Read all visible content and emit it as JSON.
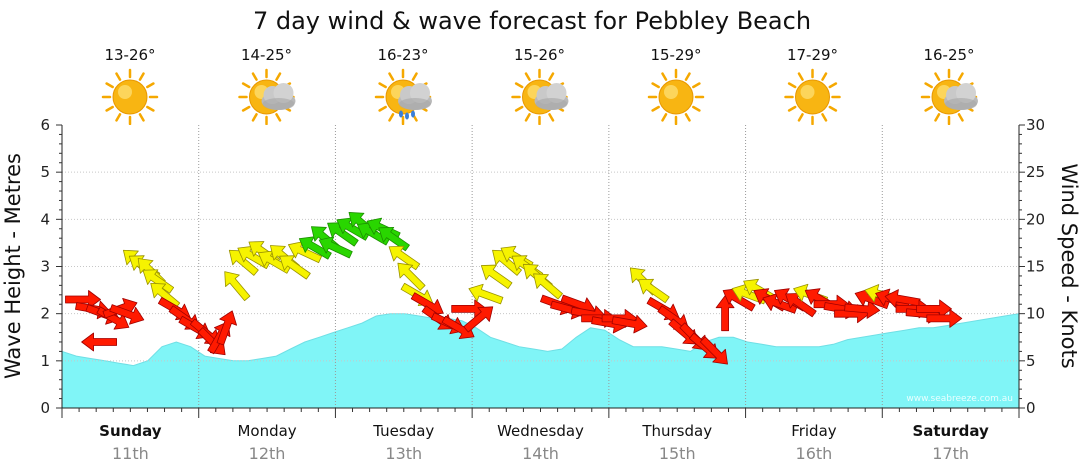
{
  "chart_data": {
    "type": "area",
    "title": "7 day wind & wave forecast for Pebbley Beach",
    "ylabel_left": "Wave Height - Metres",
    "ylabel_right": "Wind Speed - Knots",
    "ylim_left": [
      0,
      6
    ],
    "ylim_right": [
      0,
      30
    ],
    "yticks_left": [
      "0",
      "1",
      "2",
      "3",
      "4",
      "5",
      "6"
    ],
    "yticks_right": [
      "0",
      "5",
      "10",
      "15",
      "20",
      "25",
      "30"
    ],
    "credit": "www.seabreeze.com.au",
    "days": [
      {
        "name": "Sunday",
        "date": "11th",
        "temp": "13-26°",
        "weather": "sunny",
        "bold": true
      },
      {
        "name": "Monday",
        "date": "12th",
        "temp": "14-25°",
        "weather": "partly-cloudy",
        "bold": false
      },
      {
        "name": "Tuesday",
        "date": "13th",
        "temp": "16-23°",
        "weather": "showers",
        "bold": false
      },
      {
        "name": "Wednesday",
        "date": "14th",
        "temp": "15-26°",
        "weather": "partly-cloudy",
        "bold": false
      },
      {
        "name": "Thursday",
        "date": "15th",
        "temp": "15-29°",
        "weather": "sunny",
        "bold": false
      },
      {
        "name": "Friday",
        "date": "16th",
        "temp": "17-29°",
        "weather": "sunny",
        "bold": false
      },
      {
        "name": "Saturday",
        "date": "17th",
        "temp": "16-25°",
        "weather": "partly-cloudy",
        "bold": true
      }
    ],
    "wave_height_m": [
      1.2,
      1.1,
      1.05,
      1.0,
      0.95,
      0.9,
      1.0,
      1.3,
      1.4,
      1.3,
      1.1,
      1.05,
      1.0,
      1.0,
      1.05,
      1.1,
      1.25,
      1.4,
      1.5,
      1.6,
      1.7,
      1.8,
      1.95,
      2.0,
      2.0,
      1.95,
      1.9,
      1.9,
      1.85,
      1.7,
      1.5,
      1.4,
      1.3,
      1.25,
      1.2,
      1.25,
      1.5,
      1.7,
      1.65,
      1.45,
      1.3,
      1.3,
      1.3,
      1.25,
      1.2,
      1.4,
      1.5,
      1.5,
      1.4,
      1.35,
      1.3,
      1.3,
      1.3,
      1.3,
      1.35,
      1.45,
      1.5,
      1.55,
      1.6,
      1.65,
      1.7,
      1.7,
      1.75,
      1.8,
      1.85,
      1.9,
      1.95,
      2.0
    ],
    "wind_arrows": [
      {
        "x": 0.3,
        "kt": 11.5,
        "dir": 0
      },
      {
        "x": 0.45,
        "kt": 10.5,
        "dir": 10
      },
      {
        "x": 0.6,
        "kt": 10.0,
        "dir": 20
      },
      {
        "x": 0.75,
        "kt": 9.5,
        "dir": 30
      },
      {
        "x": 0.85,
        "kt": 10.5,
        "dir": -20
      },
      {
        "x": 0.95,
        "kt": 10.0,
        "dir": 20
      },
      {
        "x": 0.55,
        "kt": 7.0,
        "dir": 180
      },
      {
        "x": 1.1,
        "kt": 15.5,
        "dir": 220
      },
      {
        "x": 1.2,
        "kt": 15.0,
        "dir": 215
      },
      {
        "x": 1.3,
        "kt": 14.5,
        "dir": 225
      },
      {
        "x": 1.4,
        "kt": 13.5,
        "dir": 215
      },
      {
        "x": 1.5,
        "kt": 12.0,
        "dir": 220
      },
      {
        "x": 1.65,
        "kt": 10.5,
        "dir": 30
      },
      {
        "x": 1.8,
        "kt": 9.5,
        "dir": 35
      },
      {
        "x": 1.95,
        "kt": 8.5,
        "dir": 30
      },
      {
        "x": 2.1,
        "kt": 8.0,
        "dir": 40
      },
      {
        "x": 2.2,
        "kt": 7.0,
        "dir": 45
      },
      {
        "x": 2.3,
        "kt": 7.5,
        "dir": -60
      },
      {
        "x": 2.4,
        "kt": 8.5,
        "dir": -70
      },
      {
        "x": 2.55,
        "kt": 13.0,
        "dir": 230
      },
      {
        "x": 2.65,
        "kt": 15.5,
        "dir": 220
      },
      {
        "x": 2.8,
        "kt": 16.0,
        "dir": 210
      },
      {
        "x": 2.95,
        "kt": 16.5,
        "dir": 215
      },
      {
        "x": 3.1,
        "kt": 15.5,
        "dir": 210
      },
      {
        "x": 3.25,
        "kt": 16.0,
        "dir": 220
      },
      {
        "x": 3.4,
        "kt": 15.0,
        "dir": 215
      },
      {
        "x": 3.55,
        "kt": 16.5,
        "dir": 205
      },
      {
        "x": 3.7,
        "kt": 17.0,
        "dir": 210
      },
      {
        "x": 3.85,
        "kt": 18.0,
        "dir": 220
      },
      {
        "x": 4.0,
        "kt": 17.0,
        "dir": 205
      },
      {
        "x": 4.1,
        "kt": 18.5,
        "dir": 215
      },
      {
        "x": 4.25,
        "kt": 19.0,
        "dir": 210
      },
      {
        "x": 4.4,
        "kt": 19.5,
        "dir": 220
      },
      {
        "x": 4.55,
        "kt": 18.5,
        "dir": 210
      },
      {
        "x": 4.7,
        "kt": 19.0,
        "dir": 205
      },
      {
        "x": 4.85,
        "kt": 18.0,
        "dir": 215
      },
      {
        "x": 5.0,
        "kt": 16.0,
        "dir": 215
      },
      {
        "x": 5.1,
        "kt": 14.0,
        "dir": 225
      },
      {
        "x": 5.2,
        "kt": 12.0,
        "dir": 30
      },
      {
        "x": 5.35,
        "kt": 11.0,
        "dir": 30
      },
      {
        "x": 5.5,
        "kt": 9.5,
        "dir": 35
      },
      {
        "x": 5.65,
        "kt": 9.0,
        "dir": 25
      },
      {
        "x": 5.8,
        "kt": 8.5,
        "dir": 30
      },
      {
        "x": 5.95,
        "kt": 10.5,
        "dir": 0
      },
      {
        "x": 6.1,
        "kt": 9.5,
        "dir": -40
      },
      {
        "x": 6.2,
        "kt": 12.0,
        "dir": 200
      },
      {
        "x": 6.35,
        "kt": 14.0,
        "dir": 215
      },
      {
        "x": 6.5,
        "kt": 15.5,
        "dir": 220
      },
      {
        "x": 6.65,
        "kt": 16.0,
        "dir": 210
      },
      {
        "x": 6.8,
        "kt": 15.0,
        "dir": 215
      },
      {
        "x": 6.95,
        "kt": 14.0,
        "dir": 220
      },
      {
        "x": 7.1,
        "kt": 13.0,
        "dir": 220
      },
      {
        "x": 7.25,
        "kt": 11.0,
        "dir": 20
      },
      {
        "x": 7.4,
        "kt": 10.5,
        "dir": 15
      },
      {
        "x": 7.55,
        "kt": 11.0,
        "dir": 20
      },
      {
        "x": 7.7,
        "kt": 10.0,
        "dir": 10
      },
      {
        "x": 7.85,
        "kt": 9.5,
        "dir": 0
      },
      {
        "x": 8.0,
        "kt": 9.0,
        "dir": 10
      },
      {
        "x": 8.15,
        "kt": 9.5,
        "dir": 0
      },
      {
        "x": 8.3,
        "kt": 9.0,
        "dir": 10
      },
      {
        "x": 8.5,
        "kt": 13.5,
        "dir": 225
      },
      {
        "x": 8.65,
        "kt": 12.5,
        "dir": 215
      },
      {
        "x": 8.8,
        "kt": 10.5,
        "dir": 30
      },
      {
        "x": 8.95,
        "kt": 9.5,
        "dir": 35
      },
      {
        "x": 9.1,
        "kt": 8.0,
        "dir": 40
      },
      {
        "x": 9.25,
        "kt": 7.5,
        "dir": 45
      },
      {
        "x": 9.4,
        "kt": 6.5,
        "dir": 40
      },
      {
        "x": 9.55,
        "kt": 6.0,
        "dir": 45
      },
      {
        "x": 9.7,
        "kt": 10.0,
        "dir": -90
      },
      {
        "x": 9.9,
        "kt": 11.5,
        "dir": 210
      },
      {
        "x": 10.05,
        "kt": 12.0,
        "dir": 200
      },
      {
        "x": 10.2,
        "kt": 12.5,
        "dir": 210
      },
      {
        "x": 10.35,
        "kt": 11.5,
        "dir": 210
      },
      {
        "x": 10.5,
        "kt": 11.0,
        "dir": 200
      },
      {
        "x": 10.65,
        "kt": 11.5,
        "dir": 210
      },
      {
        "x": 10.8,
        "kt": 11.0,
        "dir": 215
      },
      {
        "x": 10.95,
        "kt": 12.0,
        "dir": 200
      },
      {
        "x": 11.1,
        "kt": 11.5,
        "dir": 210
      },
      {
        "x": 11.25,
        "kt": 11.0,
        "dir": 0
      },
      {
        "x": 11.4,
        "kt": 10.5,
        "dir": 10
      },
      {
        "x": 11.55,
        "kt": 10.0,
        "dir": 0
      },
      {
        "x": 11.7,
        "kt": 10.5,
        "dir": 5
      },
      {
        "x": 11.85,
        "kt": 11.5,
        "dir": 200
      },
      {
        "x": 12.0,
        "kt": 12.0,
        "dir": 195
      },
      {
        "x": 12.15,
        "kt": 11.5,
        "dir": 200
      },
      {
        "x": 12.3,
        "kt": 11.5,
        "dir": 190
      },
      {
        "x": 12.45,
        "kt": 10.5,
        "dir": 0
      },
      {
        "x": 12.6,
        "kt": 10.0,
        "dir": 5
      },
      {
        "x": 12.75,
        "kt": 10.5,
        "dir": 0
      },
      {
        "x": 12.9,
        "kt": 9.5,
        "dir": 0
      }
    ]
  }
}
